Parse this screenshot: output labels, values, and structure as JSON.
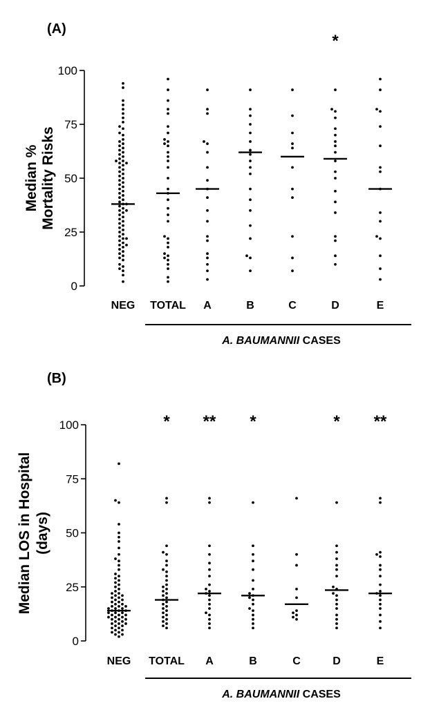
{
  "chart_data": [
    {
      "panel_label": "(A)",
      "type": "scatter",
      "ylabel": [
        "Median %",
        "Mortality Risks"
      ],
      "ylim": [
        0,
        100
      ],
      "yticks": [
        0,
        25,
        50,
        75,
        100
      ],
      "categories": [
        "NEG",
        "TOTAL",
        "A",
        "B",
        "C",
        "D",
        "E"
      ],
      "group_label_prefix": "A. BAUMANNII",
      "group_label_suffix": " CASES",
      "medians": [
        38,
        43,
        45,
        62,
        60,
        59,
        45
      ],
      "significance": [
        "",
        "",
        "",
        "",
        "",
        "*",
        ""
      ],
      "points": [
        [
          2,
          5,
          7,
          8,
          9,
          10,
          12,
          13,
          14,
          15,
          16,
          17,
          18,
          19,
          19,
          20,
          21,
          22,
          22,
          23,
          24,
          25,
          26,
          27,
          28,
          29,
          30,
          31,
          32,
          33,
          34,
          35,
          35,
          36,
          37,
          38,
          38,
          39,
          40,
          41,
          42,
          43,
          44,
          45,
          46,
          47,
          48,
          49,
          50,
          51,
          52,
          53,
          54,
          55,
          56,
          57,
          57,
          58,
          58,
          59,
          60,
          61,
          62,
          63,
          64,
          65,
          66,
          67,
          68,
          70,
          71,
          73,
          74,
          76,
          78,
          80,
          82,
          84,
          86,
          92,
          94
        ],
        [
          2,
          4,
          8,
          10,
          12,
          13,
          14,
          15,
          18,
          20,
          22,
          23,
          30,
          33,
          36,
          40,
          43,
          45,
          50,
          55,
          58,
          60,
          62,
          65,
          66,
          67,
          68,
          71,
          74,
          80,
          82,
          86,
          91,
          96
        ],
        [
          3,
          7,
          10,
          13,
          15,
          21,
          23,
          30,
          35,
          41,
          45,
          49,
          55,
          62,
          66,
          67,
          80,
          82,
          91
        ],
        [
          7,
          13,
          14,
          22,
          28,
          35,
          40,
          45,
          52,
          55,
          58,
          61,
          63,
          67,
          71,
          75,
          79,
          82,
          91
        ],
        [
          7,
          13,
          23,
          41,
          45,
          55,
          64,
          66,
          71,
          79,
          91
        ],
        [
          10,
          14,
          21,
          23,
          34,
          39,
          44,
          50,
          53,
          58,
          62,
          65,
          67,
          70,
          73,
          78,
          81,
          82,
          91
        ],
        [
          3,
          8,
          14,
          22,
          23,
          30,
          34,
          45,
          53,
          55,
          65,
          74,
          81,
          82,
          91,
          96
        ]
      ]
    },
    {
      "panel_label": "(B)",
      "type": "scatter",
      "ylabel": [
        "Median LOS in Hospital",
        "(days)"
      ],
      "ylim": [
        0,
        100
      ],
      "yticks": [
        0,
        25,
        50,
        75,
        100
      ],
      "categories": [
        "NEG",
        "TOTAL",
        "A",
        "B",
        "C",
        "D",
        "E"
      ],
      "group_label_prefix": "A. BAUMANNII",
      "group_label_suffix": " CASES",
      "medians": [
        14,
        19,
        22,
        21,
        17,
        23.5,
        22
      ],
      "significance": [
        "",
        "*",
        "**",
        "*",
        "",
        "*",
        "**"
      ],
      "points": [
        [
          2,
          3,
          3,
          4,
          4,
          5,
          5,
          6,
          6,
          7,
          7,
          8,
          8,
          8,
          9,
          9,
          10,
          10,
          10,
          11,
          11,
          11,
          12,
          12,
          12,
          13,
          13,
          13,
          14,
          14,
          14,
          15,
          15,
          15,
          16,
          16,
          16,
          17,
          17,
          18,
          18,
          19,
          19,
          20,
          20,
          21,
          21,
          22,
          22,
          23,
          24,
          25,
          26,
          27,
          28,
          29,
          30,
          31,
          33,
          35,
          37,
          38,
          40,
          43,
          46,
          48,
          50,
          54,
          64,
          65,
          82
        ],
        [
          6,
          7,
          8,
          9,
          10,
          11,
          12,
          13,
          14,
          15,
          16,
          17,
          18,
          19,
          20,
          21,
          22,
          23,
          24,
          25,
          26,
          28,
          30,
          32,
          33,
          35,
          37,
          40,
          41,
          44,
          64,
          66
        ],
        [
          6,
          8,
          10,
          12,
          13,
          15,
          17,
          19,
          21,
          22,
          23,
          24,
          26,
          30,
          33,
          36,
          40,
          44,
          64,
          66
        ],
        [
          6,
          8,
          10,
          12,
          14,
          15,
          17,
          19,
          20,
          21,
          22,
          24,
          28,
          33,
          37,
          40,
          44,
          64
        ],
        [
          10,
          11,
          12,
          13,
          14,
          20,
          24,
          35,
          40,
          66
        ],
        [
          6,
          8,
          10,
          12,
          15,
          17,
          19,
          21,
          22,
          24,
          25,
          30,
          33,
          35,
          38,
          41,
          44,
          64
        ],
        [
          6,
          9,
          12,
          15,
          17,
          19,
          21,
          22,
          23,
          26,
          30,
          33,
          35,
          39,
          40,
          41,
          64,
          66
        ]
      ]
    }
  ]
}
